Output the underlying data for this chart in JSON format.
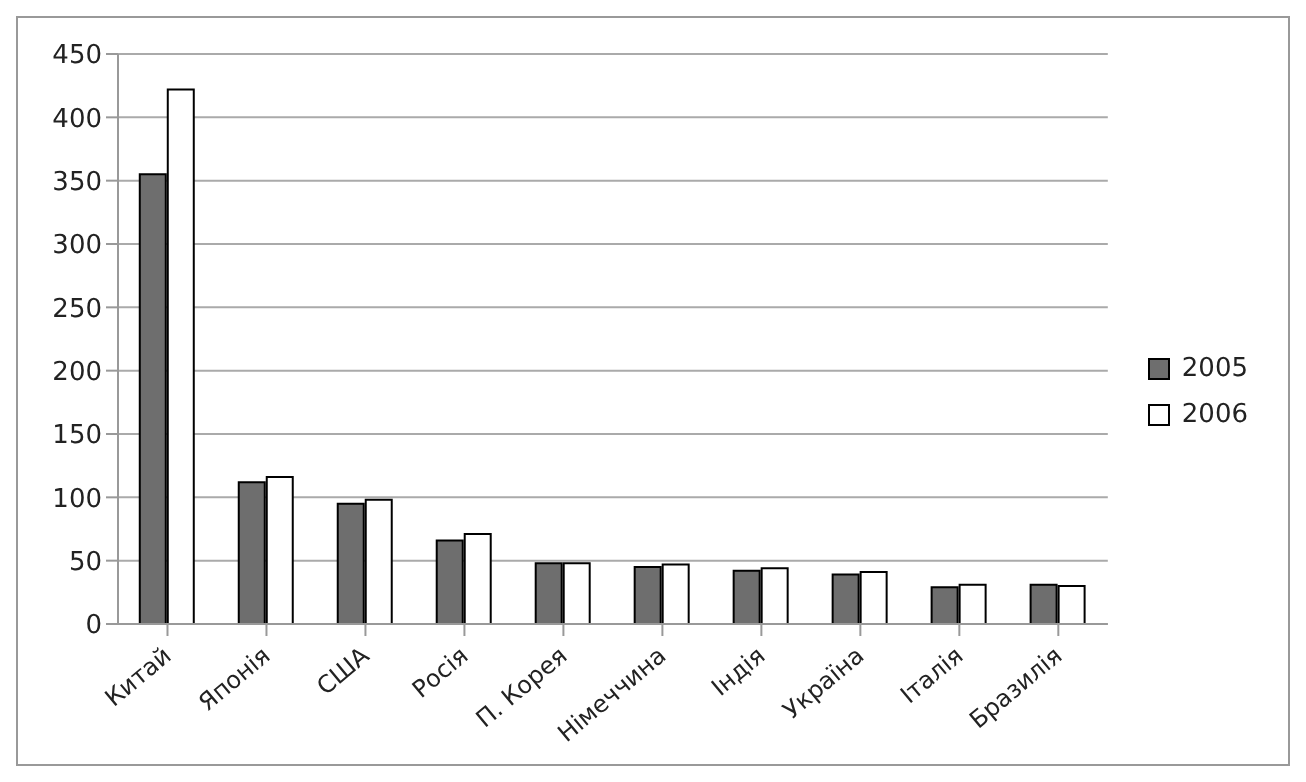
{
  "chart_data": {
    "type": "bar",
    "categories": [
      "Китай",
      "Японія",
      "США",
      "Росія",
      "П. Корея",
      "Німеччина",
      "Індія",
      "Україна",
      "Італія",
      "Бразилія"
    ],
    "series": [
      {
        "name": "2005",
        "color": "#6e6e6e",
        "values": [
          355,
          112,
          95,
          66,
          48,
          45,
          42,
          39,
          29,
          31
        ]
      },
      {
        "name": "2006",
        "color": "#ffffff",
        "values": [
          422,
          116,
          98,
          71,
          48,
          47,
          44,
          41,
          31,
          30
        ]
      }
    ],
    "ylim": [
      0,
      450
    ],
    "yticks": [
      0,
      50,
      100,
      150,
      200,
      250,
      300,
      350,
      400,
      450
    ],
    "grid": "y",
    "legend": "right"
  }
}
